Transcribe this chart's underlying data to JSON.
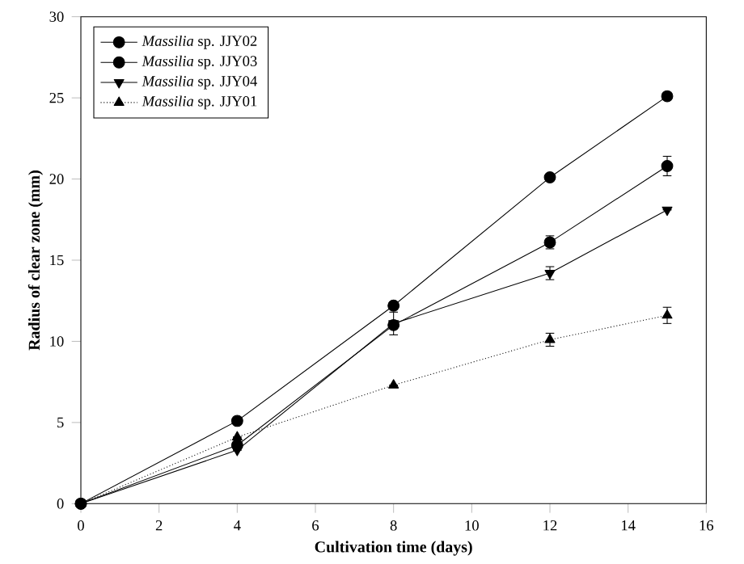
{
  "chart_data": {
    "type": "line",
    "xlabel": "Cultivation time (days)",
    "ylabel": "Radius of clear zone (mm)",
    "x": [
      0,
      4,
      8,
      12,
      15
    ],
    "xlim": [
      0,
      16
    ],
    "xticks": [
      0,
      2,
      4,
      6,
      8,
      10,
      12,
      14,
      16
    ],
    "ylim": [
      0,
      30
    ],
    "yticks": [
      0,
      5,
      10,
      15,
      20,
      25,
      30
    ],
    "legend": "top left",
    "grid": false,
    "series": [
      {
        "name": "*Massilia* sp. JJY02",
        "color": "#000000",
        "marker": "circle",
        "line_style": "solid",
        "values": [
          0,
          5.1,
          12.2,
          20.1,
          25.1
        ]
      },
      {
        "name": "*Massilia* sp. JJY03",
        "color": "#000000",
        "marker": "circle",
        "line_style": "solid",
        "values": [
          0,
          3.6,
          11.0,
          16.1,
          20.8
        ],
        "errors": [
          null,
          null,
          null,
          0.4,
          0.6
        ]
      },
      {
        "name": "*Massilia* sp. JJY04",
        "color": "#000000",
        "marker": "triangle-down",
        "line_style": "solid",
        "values": [
          0,
          3.3,
          11.1,
          14.2,
          18.1
        ],
        "errors": [
          null,
          null,
          0.7,
          0.4,
          null
        ]
      },
      {
        "name": "*Massilia* sp. JJY01",
        "color": "#000000",
        "marker": "triangle",
        "line_style": "dotted",
        "values": [
          0,
          4.1,
          7.3,
          10.1,
          11.6
        ],
        "errors": [
          null,
          null,
          null,
          0.4,
          0.5
        ]
      }
    ]
  }
}
